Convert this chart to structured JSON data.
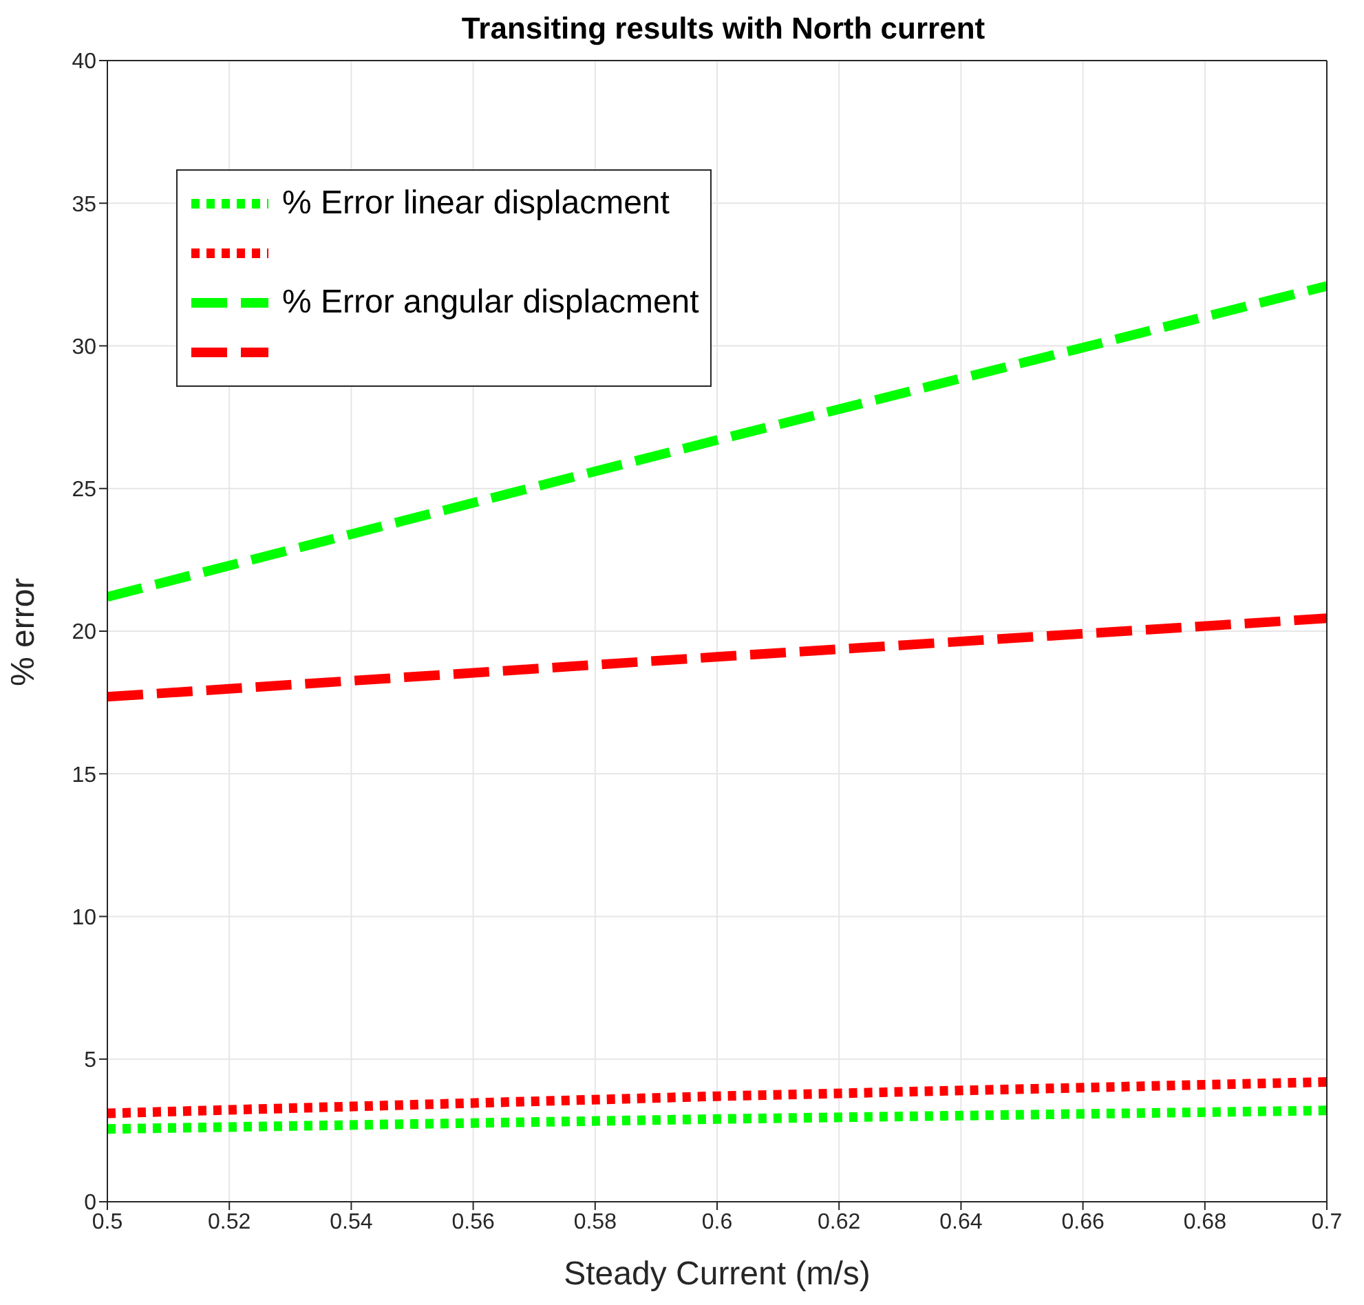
{
  "chart_data": {
    "type": "line",
    "title": "Transiting results with North current",
    "xlabel": "Steady Current (m/s)",
    "ylabel": "% error",
    "x": [
      0.5,
      0.6,
      0.7
    ],
    "series": [
      {
        "name": "% Error linear displacment",
        "color": "#00ff00",
        "line_style": "dotted",
        "values": [
          2.55,
          2.9,
          3.2
        ]
      },
      {
        "color": "#ff0000",
        "line_style": "dotted",
        "values": [
          3.1,
          3.7,
          4.2
        ]
      },
      {
        "name": "% Error angular displacment",
        "color": "#00ff00",
        "line_style": "dashed",
        "values": [
          21.2,
          26.7,
          32.1
        ]
      },
      {
        "color": "#ff0000",
        "line_style": "dashed",
        "values": [
          17.7,
          19.1,
          20.45
        ]
      }
    ],
    "xlim": [
      0.5,
      0.7
    ],
    "xticks": [
      0.5,
      0.52,
      0.54,
      0.56,
      0.58,
      0.6,
      0.62,
      0.64,
      0.66,
      0.68,
      0.7
    ],
    "ylim": [
      0,
      40
    ],
    "yticks": [
      0,
      5,
      10,
      15,
      20,
      25,
      30,
      35,
      40
    ],
    "grid": true,
    "legend": "top left",
    "marker": "none"
  }
}
